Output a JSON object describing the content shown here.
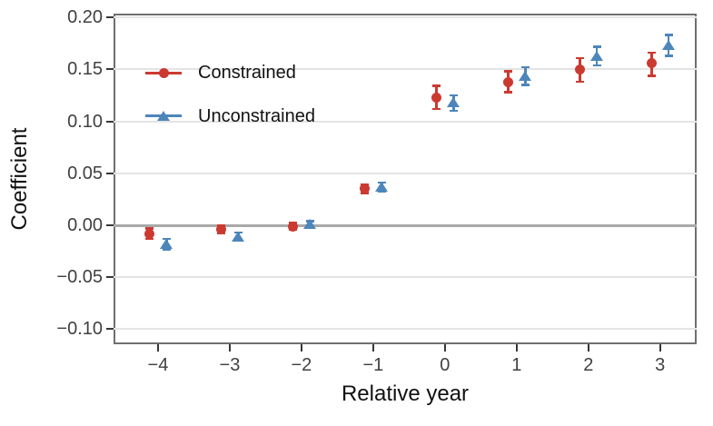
{
  "chart_data": {
    "type": "scatter",
    "title": "",
    "xlabel": "Relative year",
    "ylabel": "Coefficient",
    "x": [
      -4,
      -3,
      -2,
      -1,
      0,
      1,
      2,
      3
    ],
    "xtick_labels": [
      "−4",
      "−3",
      "−2",
      "−1",
      "0",
      "1",
      "2",
      "3"
    ],
    "yticks": [
      0.2,
      0.15,
      0.1,
      0.05,
      0.0,
      -0.05,
      -0.1
    ],
    "ytick_labels": [
      "0.20",
      "0.15",
      "0.10",
      "0.05",
      "0.00",
      "−0.05",
      "−0.10"
    ],
    "xlim": [
      -4.62,
      3.51
    ],
    "ylim": [
      -0.1145,
      0.2037
    ],
    "grid": "horizontal-only",
    "zero_reference_line": 0.0,
    "legend_position": "inside-top-left",
    "series": [
      {
        "name": "Constrained",
        "marker": "circle",
        "color": "#cb3a31",
        "dodge": -0.12,
        "values": [
          -0.008,
          -0.004,
          -0.001,
          0.035,
          0.123,
          0.138,
          0.15,
          0.156
        ],
        "ci_low": [
          -0.013,
          -0.008,
          -0.004,
          0.031,
          0.112,
          0.128,
          0.138,
          0.144
        ],
        "ci_high": [
          -0.003,
          0.0,
          0.002,
          0.039,
          0.134,
          0.148,
          0.161,
          0.166
        ]
      },
      {
        "name": "Unconstrained",
        "marker": "triangle",
        "color": "#4d86ba",
        "dodge": 0.12,
        "values": [
          -0.018,
          -0.011,
          0.001,
          0.037,
          0.118,
          0.143,
          0.163,
          0.173
        ],
        "ci_low": [
          -0.023,
          -0.015,
          -0.002,
          0.033,
          0.11,
          0.135,
          0.154,
          0.163
        ],
        "ci_high": [
          -0.013,
          -0.007,
          0.004,
          0.041,
          0.125,
          0.152,
          0.172,
          0.183
        ]
      }
    ],
    "style": {
      "grid_color": "#e4e4e4",
      "zero_line_color": "#a9a9a9",
      "panel_border_color": "#6f6f6f",
      "tick_color": "#373737",
      "tick_label_color": "#404040",
      "axis_title_color": "#111111",
      "background": "#ffffff"
    }
  }
}
